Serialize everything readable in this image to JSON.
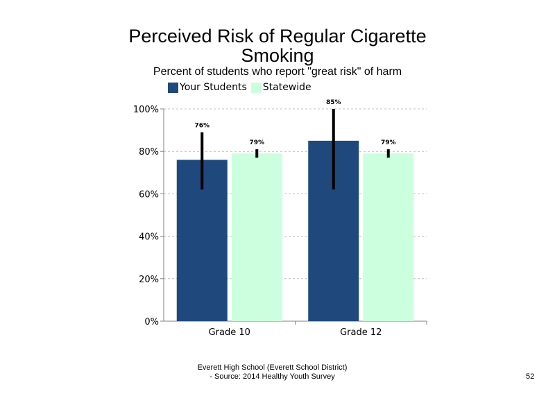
{
  "chart_data": {
    "type": "bar",
    "title": "Perceived Risk of Regular Cigarette Smoking",
    "title_lines": [
      "Perceived Risk of Regular Cigarette",
      "Smoking"
    ],
    "subtitle": "Percent of students who report \"great risk\" of harm",
    "categories": [
      "Grade 10",
      "Grade 12"
    ],
    "series": [
      {
        "name": "Your Students",
        "color": "#1F497D",
        "values": [
          76,
          85
        ],
        "labels": [
          "76%",
          "85%"
        ],
        "error_low": [
          62,
          62
        ],
        "error_high": [
          89,
          100
        ]
      },
      {
        "name": "Statewide",
        "color": "#CCFFDD",
        "values": [
          79,
          79
        ],
        "labels": [
          "79%",
          "79%"
        ],
        "error_low": [
          77,
          77
        ],
        "error_high": [
          81,
          81
        ]
      }
    ],
    "yticks": [
      "0%",
      "20%",
      "40%",
      "60%",
      "80%",
      "100%"
    ],
    "ylim": [
      0,
      100
    ],
    "grid": "dashed horizontal",
    "legend_position": "top"
  },
  "footer": {
    "line1": "Everett High School (Everett School District)",
    "line2": "- Source: 2014 Healthy Youth Survey",
    "page_number": "52"
  }
}
